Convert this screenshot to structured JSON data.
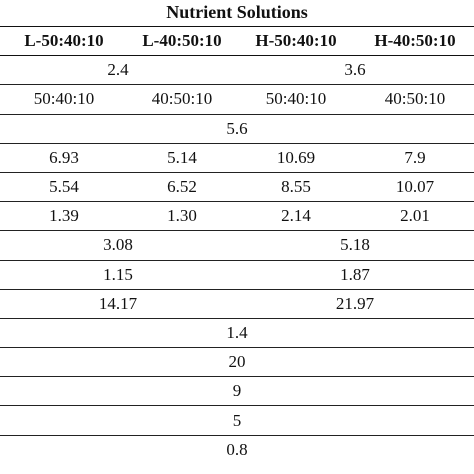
{
  "table": {
    "caption": "Nutrient Solutions",
    "headers": [
      "L-50:40:10",
      "L-40:50:10",
      "H-50:40:10",
      "H-40:50:10"
    ],
    "rows": [
      {
        "type": "pair",
        "cells": [
          "2.4",
          "3.6"
        ]
      },
      {
        "type": "quad",
        "cells": [
          "50:40:10",
          "40:50:10",
          "50:40:10",
          "40:50:10"
        ]
      },
      {
        "type": "single",
        "cells": [
          "5.6"
        ]
      },
      {
        "type": "quad",
        "cells": [
          "6.93",
          "5.14",
          "10.69",
          "7.9"
        ]
      },
      {
        "type": "quad",
        "cells": [
          "5.54",
          "6.52",
          "8.55",
          "10.07"
        ]
      },
      {
        "type": "quad",
        "cells": [
          "1.39",
          "1.30",
          "2.14",
          "2.01"
        ]
      },
      {
        "type": "pair",
        "cells": [
          "3.08",
          "5.18"
        ]
      },
      {
        "type": "pair",
        "cells": [
          "1.15",
          "1.87"
        ]
      },
      {
        "type": "pair",
        "cells": [
          "14.17",
          "21.97"
        ]
      },
      {
        "type": "single",
        "cells": [
          "1.4"
        ]
      },
      {
        "type": "single",
        "cells": [
          "20"
        ]
      },
      {
        "type": "single",
        "cells": [
          "9"
        ]
      },
      {
        "type": "single",
        "cells": [
          "5"
        ]
      },
      {
        "type": "single",
        "cells": [
          "0.8"
        ]
      }
    ]
  }
}
